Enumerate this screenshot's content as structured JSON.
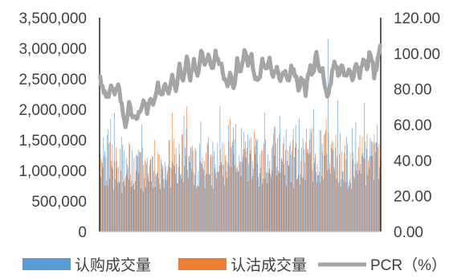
{
  "chart_data": {
    "type": "bar",
    "x_count": 234,
    "left_axis": {
      "ylim": [
        0,
        3500000
      ],
      "ticks": [
        {
          "value": 0,
          "label": "0"
        },
        {
          "value": 500000,
          "label": "500,000"
        },
        {
          "value": 1000000,
          "label": "1,000,000"
        },
        {
          "value": 1500000,
          "label": "1,500,000"
        },
        {
          "value": 2000000,
          "label": "2,000,000"
        },
        {
          "value": 2500000,
          "label": "2,500,000"
        },
        {
          "value": 3000000,
          "label": "3,000,000"
        },
        {
          "value": 3500000,
          "label": "3,500,000"
        }
      ]
    },
    "right_axis": {
      "ylim": [
        0,
        120
      ],
      "ticks": [
        {
          "value": 0,
          "label": "0.00"
        },
        {
          "value": 20,
          "label": "20.00"
        },
        {
          "value": 40,
          "label": "40.00"
        },
        {
          "value": 60,
          "label": "60.00"
        },
        {
          "value": 80,
          "label": "80.00"
        },
        {
          "value": 100,
          "label": "100.00"
        },
        {
          "value": 120,
          "label": "120.00"
        }
      ]
    },
    "series": [
      {
        "name": "认购成交量",
        "type": "bar",
        "axis": "left",
        "color": "#5b9bd5",
        "anchors": [
          [
            0,
            1050000
          ],
          [
            10,
            1400000
          ],
          [
            20,
            1150000
          ],
          [
            30,
            1100000
          ],
          [
            40,
            1000000
          ],
          [
            50,
            950000
          ],
          [
            60,
            1100000
          ],
          [
            70,
            1300000
          ],
          [
            80,
            1250000
          ],
          [
            90,
            1150000
          ],
          [
            100,
            1200000
          ],
          [
            110,
            1350000
          ],
          [
            120,
            1250000
          ],
          [
            130,
            1200000
          ],
          [
            140,
            1250000
          ],
          [
            150,
            1400000
          ],
          [
            160,
            1300000
          ],
          [
            170,
            1300000
          ],
          [
            180,
            1450000
          ],
          [
            190,
            1350000
          ],
          [
            200,
            1200000
          ],
          [
            210,
            1350000
          ],
          [
            220,
            1300000
          ],
          [
            233,
            1250000
          ]
        ],
        "spikes": [
          [
            12,
            1950000
          ],
          [
            35,
            1750000
          ],
          [
            58,
            1500000
          ],
          [
            70,
            1900000
          ],
          [
            84,
            1800000
          ],
          [
            100,
            2050000
          ],
          [
            118,
            1700000
          ],
          [
            137,
            1950000
          ],
          [
            150,
            1900000
          ],
          [
            166,
            1850000
          ],
          [
            178,
            2000000
          ],
          [
            190,
            3150000
          ],
          [
            198,
            2150000
          ],
          [
            210,
            1700000
          ],
          [
            220,
            2100000
          ],
          [
            231,
            1750000
          ]
        ]
      },
      {
        "name": "认沽成交量",
        "type": "bar",
        "axis": "left",
        "color": "#ed7d31",
        "anchors": [
          [
            0,
            1000000
          ],
          [
            10,
            1150000
          ],
          [
            20,
            950000
          ],
          [
            30,
            1050000
          ],
          [
            40,
            1050000
          ],
          [
            50,
            1000000
          ],
          [
            60,
            1150000
          ],
          [
            70,
            1250000
          ],
          [
            80,
            1150000
          ],
          [
            90,
            1100000
          ],
          [
            100,
            1050000
          ],
          [
            110,
            1150000
          ],
          [
            120,
            1300000
          ],
          [
            130,
            1100000
          ],
          [
            140,
            1150000
          ],
          [
            150,
            1250000
          ],
          [
            160,
            1150000
          ],
          [
            170,
            1250000
          ],
          [
            180,
            1100000
          ],
          [
            190,
            1300000
          ],
          [
            200,
            1100000
          ],
          [
            210,
            1150000
          ],
          [
            220,
            1250000
          ],
          [
            233,
            1150000
          ]
        ],
        "spikes": [
          [
            24,
            1450000
          ],
          [
            45,
            1500000
          ],
          [
            60,
            1950000
          ],
          [
            72,
            2050000
          ],
          [
            90,
            1550000
          ],
          [
            108,
            1850000
          ],
          [
            128,
            1650000
          ],
          [
            144,
            1600000
          ],
          [
            160,
            1500000
          ],
          [
            176,
            1700000
          ],
          [
            188,
            1850000
          ],
          [
            205,
            1550000
          ],
          [
            222,
            1600000
          ],
          [
            230,
            1450000
          ]
        ]
      },
      {
        "name": "PCR（%）",
        "type": "line",
        "axis": "right",
        "color": "#a5a5a5",
        "anchors": [
          [
            0,
            85
          ],
          [
            3,
            80
          ],
          [
            6,
            75
          ],
          [
            9,
            82
          ],
          [
            12,
            76
          ],
          [
            15,
            85
          ],
          [
            18,
            70
          ],
          [
            21,
            57
          ],
          [
            24,
            72
          ],
          [
            27,
            65
          ],
          [
            30,
            63
          ],
          [
            33,
            67
          ],
          [
            36,
            72
          ],
          [
            39,
            68
          ],
          [
            42,
            76
          ],
          [
            45,
            72
          ],
          [
            48,
            82
          ],
          [
            51,
            76
          ],
          [
            54,
            85
          ],
          [
            57,
            78
          ],
          [
            60,
            90
          ],
          [
            63,
            78
          ],
          [
            66,
            92
          ],
          [
            69,
            84
          ],
          [
            72,
            98
          ],
          [
            75,
            86
          ],
          [
            78,
            96
          ],
          [
            81,
            88
          ],
          [
            84,
            103
          ],
          [
            87,
            95
          ],
          [
            90,
            98
          ],
          [
            93,
            92
          ],
          [
            96,
            100
          ],
          [
            99,
            95
          ],
          [
            102,
            90
          ],
          [
            105,
            82
          ],
          [
            108,
            88
          ],
          [
            111,
            80
          ],
          [
            114,
            95
          ],
          [
            117,
            88
          ],
          [
            120,
            102
          ],
          [
            123,
            92
          ],
          [
            126,
            98
          ],
          [
            129,
            88
          ],
          [
            132,
            86
          ],
          [
            135,
            95
          ],
          [
            138,
            90
          ],
          [
            141,
            97
          ],
          [
            144,
            87
          ],
          [
            147,
            92
          ],
          [
            150,
            86
          ],
          [
            153,
            90
          ],
          [
            156,
            84
          ],
          [
            159,
            93
          ],
          [
            162,
            88
          ],
          [
            165,
            80
          ],
          [
            168,
            86
          ],
          [
            171,
            78
          ],
          [
            174,
            92
          ],
          [
            177,
            90
          ],
          [
            180,
            98
          ],
          [
            183,
            92
          ],
          [
            186,
            88
          ],
          [
            189,
            75
          ],
          [
            192,
            85
          ],
          [
            195,
            95
          ],
          [
            198,
            88
          ],
          [
            201,
            93
          ],
          [
            204,
            88
          ],
          [
            207,
            92
          ],
          [
            210,
            87
          ],
          [
            213,
            93
          ],
          [
            216,
            88
          ],
          [
            219,
            98
          ],
          [
            222,
            92
          ],
          [
            225,
            101
          ],
          [
            228,
            88
          ],
          [
            231,
            95
          ],
          [
            233,
            104
          ]
        ]
      }
    ]
  },
  "legend": [
    {
      "label": "认购成交量",
      "color": "#5b9bd5",
      "kind": "box"
    },
    {
      "label": "认沽成交量",
      "color": "#ed7d31",
      "kind": "box"
    },
    {
      "label": "PCR（%）",
      "color": "#a5a5a5",
      "kind": "line"
    }
  ]
}
